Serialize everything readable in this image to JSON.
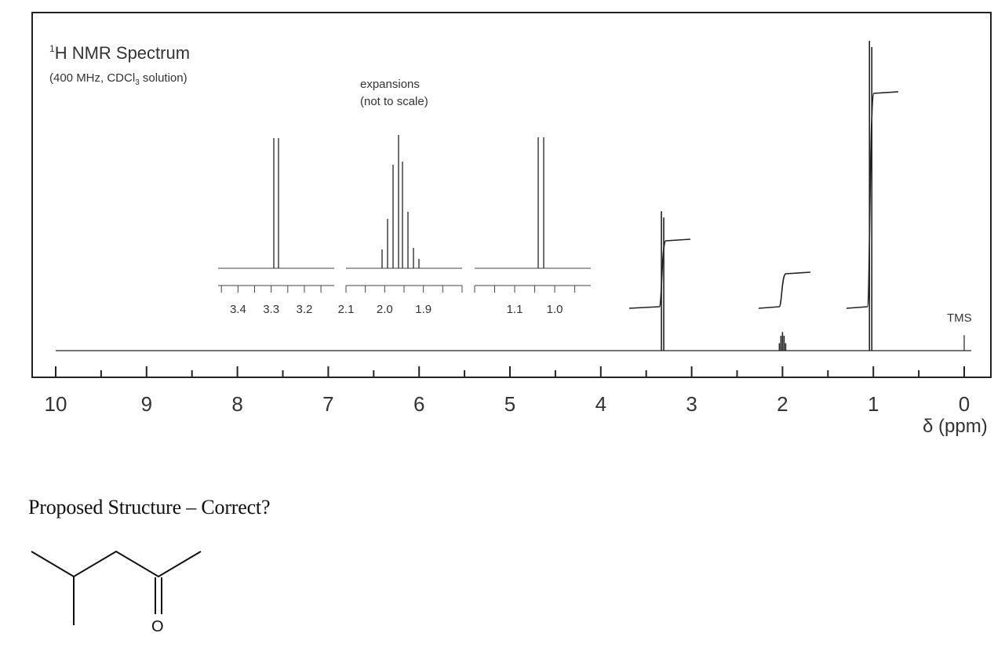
{
  "chart_data": {
    "type": "line",
    "title_sup": "1",
    "title": "H NMR Spectrum",
    "subtitle_pre": "(400 MHz, CDCl",
    "subtitle_sub": "3",
    "subtitle_post": " solution)",
    "xlabel": "δ (ppm)",
    "xlim": [
      10,
      0
    ],
    "x_ticks": [
      "10",
      "9",
      "8",
      "7",
      "6",
      "5",
      "4",
      "3",
      "2",
      "1",
      "0"
    ],
    "reference_label": "TMS",
    "expansion_label_line1": "expansions",
    "expansion_label_line2": "(not to scale)",
    "peaks": [
      {
        "shift": 3.32,
        "multiplicity": "doublet",
        "height": 0.45
      },
      {
        "shift": 2.0,
        "multiplicity": "multiplet",
        "height": 0.06
      },
      {
        "shift": 1.03,
        "multiplicity": "doublet",
        "height": 1.0
      },
      {
        "shift": 0.0,
        "multiplicity": "singlet",
        "height": 0.05
      }
    ],
    "expansions": [
      {
        "ticks": [
          "3.4",
          "3.3",
          "3.2"
        ],
        "tick_values": [
          3.4,
          3.3,
          3.2
        ],
        "xlim": [
          3.46,
          3.11
        ]
      },
      {
        "ticks": [
          "2.1",
          "2.0",
          "1.9"
        ],
        "tick_values": [
          2.1,
          2.0,
          1.9
        ],
        "xlim": [
          2.1,
          1.8
        ]
      },
      {
        "ticks": [
          "1.1",
          "1.0"
        ],
        "tick_values": [
          1.1,
          1.0
        ],
        "xlim": [
          1.2,
          0.91
        ]
      }
    ]
  },
  "question": "Proposed Structure – Correct?",
  "structure_atom": "O"
}
